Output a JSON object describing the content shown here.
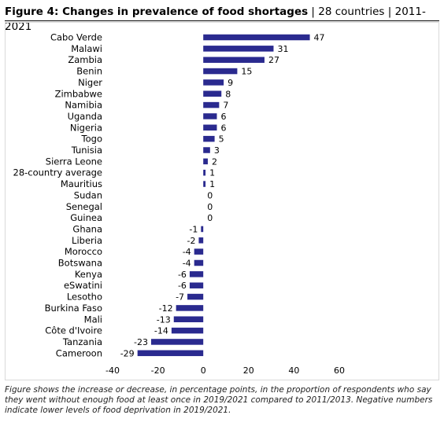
{
  "figure_title_bold": "Figure 4: Changes in prevalence of food shortages",
  "figure_title_rest": " | 28 countries | 2011-2021",
  "caption": "Figure shows the increase or decrease, in percentage points, in the proportion of respondents who say they went without enough food at least once in 2019/2021 compared to 2011/2013. Negative numbers indicate lower levels of food deprivation in 2019/2021.",
  "colors": {
    "bar": "#2a2a8f",
    "text": "#000000"
  },
  "chart_data": {
    "type": "bar",
    "orientation": "horizontal",
    "categories": [
      "Cabo Verde",
      "Malawi",
      "Zambia",
      "Benin",
      "Niger",
      "Zimbabwe",
      "Namibia",
      "Uganda",
      "Nigeria",
      "Togo",
      "Tunisia",
      "Sierra Leone",
      "28-country average",
      "Mauritius",
      "Sudan",
      "Senegal",
      "Guinea",
      "Ghana",
      "Liberia",
      "Morocco",
      "Botswana",
      "Kenya",
      "eSwatini",
      "Lesotho",
      "Burkina Faso",
      "Mali",
      "Côte d'Ivoire",
      "Tanzania",
      "Cameroon"
    ],
    "values": [
      47,
      31,
      27,
      15,
      9,
      8,
      7,
      6,
      6,
      5,
      3,
      2,
      1,
      1,
      0,
      0,
      0,
      -1,
      -2,
      -4,
      -4,
      -6,
      -6,
      -7,
      -12,
      -13,
      -14,
      -23,
      -29
    ],
    "data_labels": [
      "47",
      "31",
      "27",
      "15",
      "9",
      "8",
      "7",
      "6",
      "6",
      "5",
      "3",
      "2",
      "1",
      "1",
      "0",
      "0",
      "0",
      "-1",
      "-2",
      "-4",
      "-4",
      "-6",
      "-6",
      "-7",
      "-12",
      "-13",
      "-14",
      "-23",
      "-29"
    ],
    "x_ticks": [
      -40,
      -20,
      0,
      20,
      40,
      60
    ],
    "x_tick_labels": [
      "-40",
      "-20",
      "0",
      "20",
      "40",
      "60"
    ],
    "xlim": [
      -40,
      60
    ],
    "grid": false,
    "legend": "none",
    "title": "",
    "xlabel": "",
    "ylabel": ""
  }
}
